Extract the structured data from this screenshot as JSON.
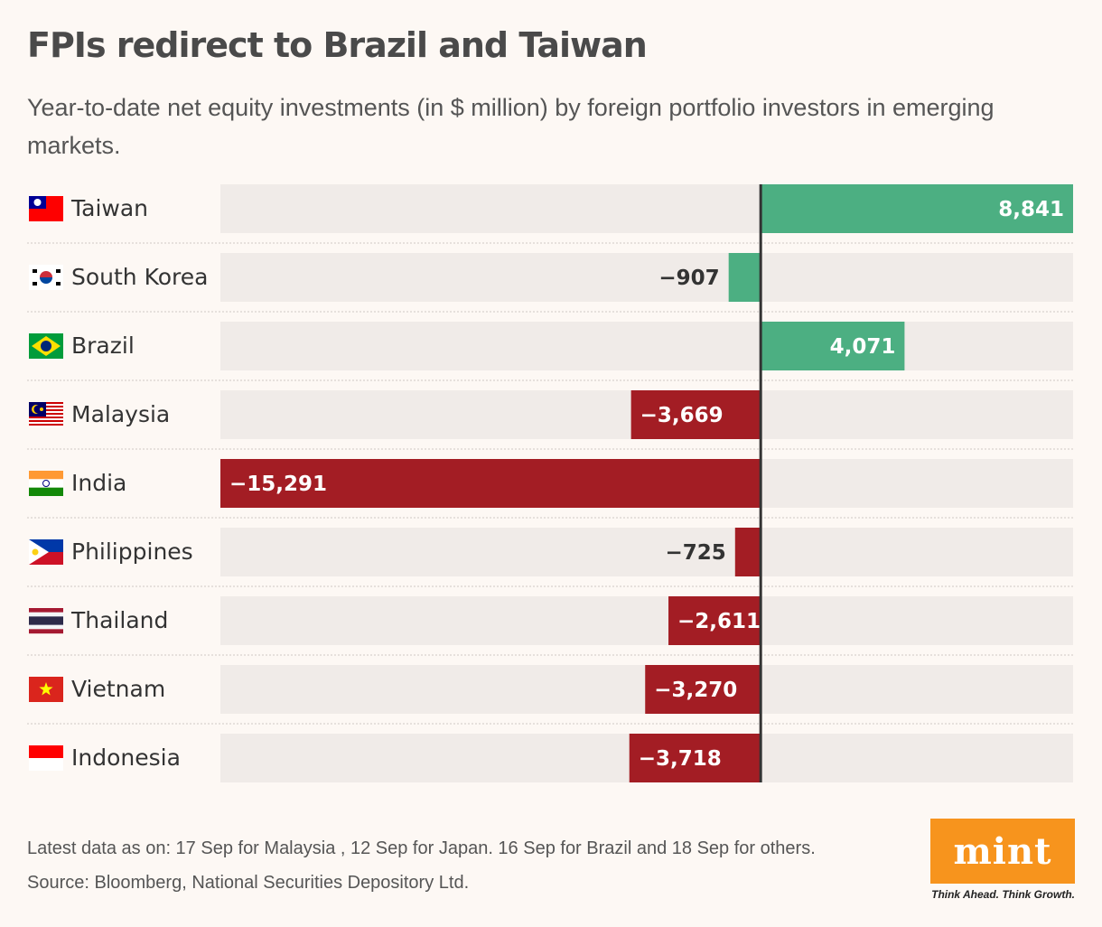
{
  "title": "FPIs redirect to Brazil and Taiwan",
  "subtitle": "Year-to-date net equity investments (in $ million) by foreign portfolio investors in emerging markets.",
  "footnote": "Latest data as on: 17 Sep for Malaysia , 12 Sep for Japan. 16 Sep for Brazil and 18 Sep for others.",
  "source": "Source: Bloomberg, National Securities Depository Ltd.",
  "logo": {
    "word": "mint",
    "tagline": "Think Ahead. Think Growth.",
    "color": "#f7941d"
  },
  "colors": {
    "positive": "#4caf82",
    "negative": "#a31d24",
    "track": "#f0ebe8",
    "zero_line": "#333333",
    "text": "#333333",
    "positive_bar_koreas": "#4caf82"
  },
  "chart_data": {
    "type": "bar",
    "orientation": "horizontal",
    "title": "FPIs redirect to Brazil and Taiwan",
    "subtitle": "Year-to-date net equity investments (in $ million) by foreign portfolio investors in emerging markets.",
    "xlim": [
      -15291,
      8841
    ],
    "grid": false,
    "categories": [
      "Taiwan",
      "South Korea",
      "Brazil",
      "Malaysia",
      "India",
      "Philippines",
      "Thailand",
      "Vietnam",
      "Indonesia"
    ],
    "values": [
      8841,
      -907,
      4071,
      -3669,
      -15291,
      -725,
      -2611,
      -3270,
      -3718
    ],
    "labels": [
      "8,841",
      "−907",
      "4,071",
      "−3,669",
      "−15,291",
      "−725",
      "−2,611",
      "−3,270",
      "−3,718"
    ],
    "bar_colors": [
      "positive",
      "positive",
      "positive",
      "negative",
      "negative",
      "negative",
      "negative",
      "negative",
      "negative"
    ],
    "flags": [
      "taiwan-flag",
      "south-korea-flag",
      "brazil-flag",
      "malaysia-flag",
      "india-flag",
      "philippines-flag",
      "thailand-flag",
      "vietnam-flag",
      "indonesia-flag"
    ]
  }
}
